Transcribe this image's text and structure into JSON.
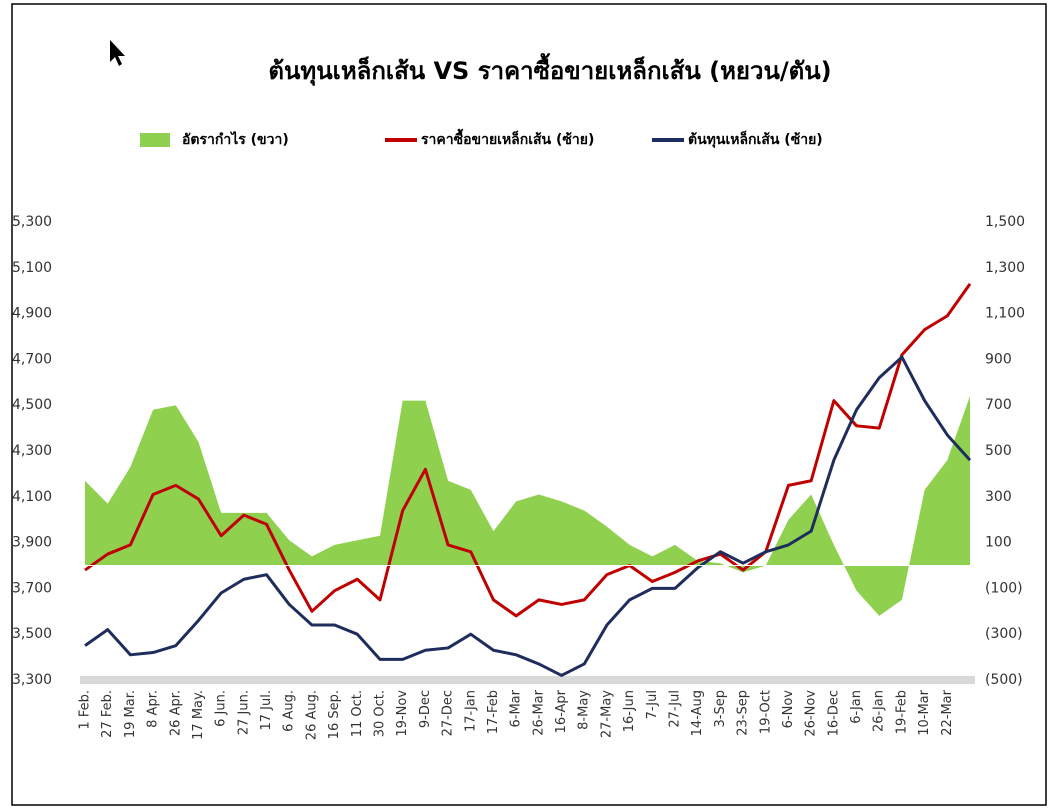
{
  "chart_data": {
    "type": "line",
    "title": "ต้นทุนเหล็กเส้น VS ราคาซื้อขายเหล็กเส้น (หยวน/ตัน)",
    "categories": [
      "1 Feb.",
      "27 Feb.",
      "19 Mar.",
      "8 Apr.",
      "26 Apr.",
      "17 May.",
      "6 Jun.",
      "27 Jun.",
      "17 Jul.",
      "6 Aug.",
      "26 Aug.",
      "16 Sep.",
      "11 Oct.",
      "30 Oct.",
      "19-Nov",
      "9-Dec",
      "27-Dec",
      "17-Jan",
      "17-Feb",
      "6-Mar",
      "26-Mar",
      "16-Apr",
      "8-May",
      "27-May",
      "16-Jun",
      "7-Jul",
      "27-Jul",
      "14-Aug",
      "3-Sep",
      "23-Sep",
      "19-Oct",
      "6-Nov",
      "26-Nov",
      "16-Dec",
      "6-Jan",
      "26-Jan",
      "19-Feb",
      "10-Mar",
      "22-Mar",
      null
    ],
    "series": [
      {
        "name": "อัตรากำไร (ขวา)",
        "type": "area",
        "axis": "y2",
        "color": "#8fd14f",
        "values": [
          370,
          270,
          430,
          680,
          700,
          540,
          230,
          230,
          230,
          110,
          40,
          90,
          110,
          130,
          720,
          720,
          370,
          330,
          150,
          280,
          310,
          280,
          240,
          170,
          90,
          40,
          90,
          20,
          10,
          -30,
          0,
          200,
          310,
          90,
          -110,
          -220,
          -150,
          330,
          460,
          740
        ]
      },
      {
        "name": "ราคาซื้อขายเหล็กเส้น (ซ้าย)",
        "type": "line",
        "color": "#c00000",
        "values": [
          3780,
          3850,
          3890,
          4110,
          4150,
          4090,
          3930,
          4020,
          3980,
          3780,
          3600,
          3690,
          3740,
          3650,
          4040,
          4220,
          3890,
          3860,
          3650,
          3580,
          3650,
          3630,
          3650,
          3760,
          3800,
          3730,
          3770,
          3820,
          3850,
          3780,
          3860,
          4150,
          4170,
          4520,
          4410,
          4400,
          4720,
          4830,
          4890,
          5030
        ]
      },
      {
        "name": "ต้นทุนเหล็กเส้น (ซ้าย)",
        "type": "line",
        "color": "#1f2d5c",
        "values": [
          3450,
          3520,
          3410,
          3420,
          3450,
          3560,
          3680,
          3740,
          3760,
          3630,
          3540,
          3540,
          3500,
          3390,
          3390,
          3430,
          3440,
          3500,
          3430,
          3410,
          3370,
          3320,
          3370,
          3540,
          3650,
          3700,
          3700,
          3790,
          3860,
          3810,
          3860,
          3890,
          3950,
          4260,
          4480,
          4620,
          4710,
          4520,
          4370,
          4260
        ]
      }
    ],
    "ylim": [
      3300,
      5300
    ],
    "yticks": [
      {
        "value": 3300,
        "label": "3,300"
      },
      {
        "value": 3500,
        "label": "3,500"
      },
      {
        "value": 3700,
        "label": "3,700"
      },
      {
        "value": 3900,
        "label": "3,900"
      },
      {
        "value": 4100,
        "label": "4,100"
      },
      {
        "value": 4300,
        "label": "4,300"
      },
      {
        "value": 4500,
        "label": "4,500"
      },
      {
        "value": 4700,
        "label": "4,700"
      },
      {
        "value": 4900,
        "label": "4,900"
      },
      {
        "value": 5100,
        "label": "5,100"
      },
      {
        "value": 5300,
        "label": "5,300"
      }
    ],
    "y2lim": [
      -500,
      1500
    ],
    "y2ticks": [
      {
        "value": -500,
        "label": "(500)"
      },
      {
        "value": -300,
        "label": "(300)"
      },
      {
        "value": -100,
        "label": "(100)"
      },
      100,
      300,
      500,
      700,
      900,
      {
        "value": 1100,
        "label": "1,100"
      },
      {
        "value": 1300,
        "label": "1,300"
      },
      {
        "value": 1500,
        "label": "1,500"
      }
    ],
    "negative_label_color": "#c00000",
    "grid": false
  }
}
